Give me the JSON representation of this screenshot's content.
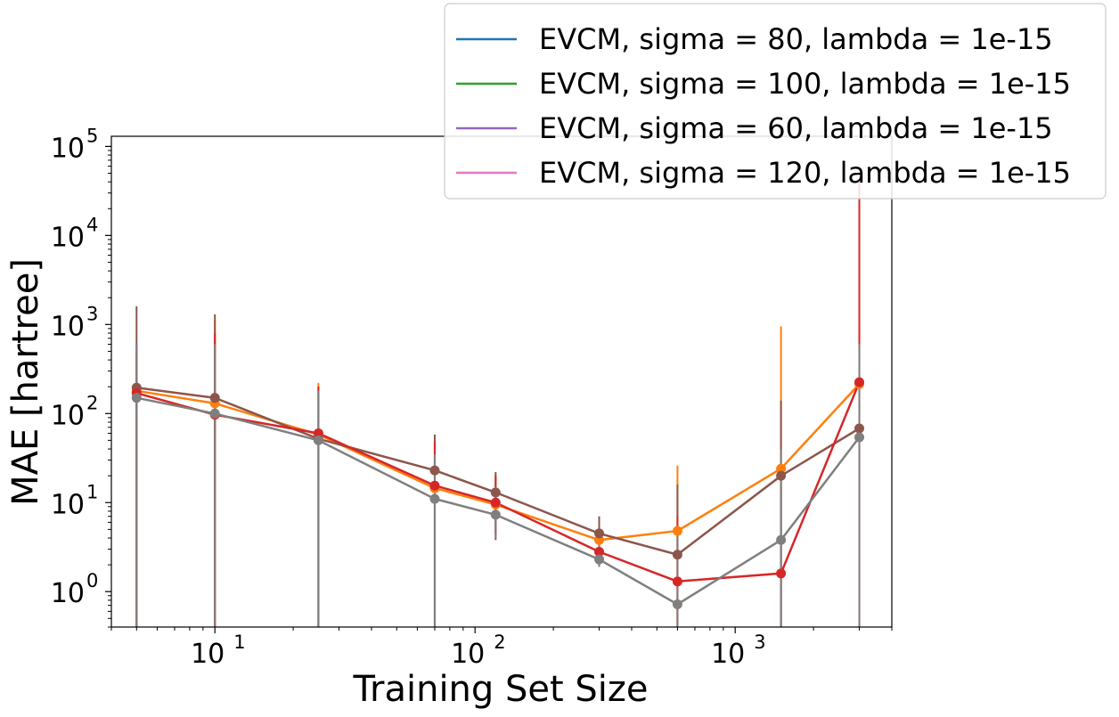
{
  "chart_data": {
    "type": "line",
    "xlabel": "Training Set Size",
    "ylabel": "MAE [hartree]",
    "xscale": "log",
    "yscale": "log",
    "xlim": [
      4,
      4000
    ],
    "ylim": [
      0.4,
      130000
    ],
    "x_ticks": [
      {
        "value": 10,
        "base": "10",
        "exp": "1"
      },
      {
        "value": 100,
        "base": "10",
        "exp": "2"
      },
      {
        "value": 1000,
        "base": "10",
        "exp": "3"
      }
    ],
    "y_ticks": [
      {
        "value": 1,
        "base": "10",
        "exp": "0"
      },
      {
        "value": 10,
        "base": "10",
        "exp": "1"
      },
      {
        "value": 100,
        "base": "10",
        "exp": "2"
      },
      {
        "value": 1000,
        "base": "10",
        "exp": "3"
      },
      {
        "value": 10000,
        "base": "10",
        "exp": "4"
      },
      {
        "value": 100000,
        "base": "10",
        "exp": "5"
      }
    ],
    "legend": {
      "placement": "top-right",
      "entries": [
        {
          "name": "EVCM, sigma = 80, lambda = 1e-15",
          "color": "#1f77b4"
        },
        {
          "name": "EVCM, sigma = 100, lambda = 1e-15",
          "color": "#2ca02c"
        },
        {
          "name": "EVCM, sigma = 60, lambda = 1e-15",
          "color": "#9467bd"
        },
        {
          "name": "EVCM, sigma = 120, lambda = 1e-15",
          "color": "#e377c2"
        }
      ]
    },
    "x": [
      5,
      10,
      25,
      70,
      120,
      300,
      600,
      1500,
      3000
    ],
    "series": [
      {
        "color": "#ff7f0e",
        "values": [
          180,
          130,
          58,
          14.5,
          9.5,
          3.8,
          4.8,
          24,
          215
        ],
        "err_low": [
          0.4,
          0.4,
          0.4,
          0.4,
          4.5,
          2.2,
          0.4,
          0.4,
          0.4
        ],
        "err_high": [
          600,
          1100,
          220,
          50,
          20,
          6,
          26,
          950,
          1000
        ]
      },
      {
        "color": "#8c564b",
        "values": [
          195,
          150,
          52,
          23,
          13,
          4.5,
          2.6,
          20,
          68
        ],
        "err_low": [
          0.4,
          0.4,
          0.4,
          0.4,
          3.8,
          2.4,
          0.4,
          0.4,
          0.4
        ],
        "err_high": [
          1600,
          1300,
          200,
          58,
          22,
          7,
          16,
          140,
          700
        ]
      },
      {
        "color": "#d62728",
        "values": [
          170,
          97,
          60,
          15.5,
          10,
          2.8,
          1.3,
          1.6,
          225
        ],
        "err_low": [
          0.4,
          0.4,
          0.4,
          0.4,
          4.5,
          1.9,
          0.4,
          0.4,
          0.4
        ],
        "err_high": [
          500,
          800,
          200,
          48,
          20,
          4.5,
          7,
          15,
          40000
        ]
      },
      {
        "color": "#7f7f7f",
        "values": [
          150,
          100,
          50,
          11,
          7.3,
          2.3,
          0.72,
          3.8,
          54
        ],
        "err_low": [
          0.4,
          0.4,
          0.4,
          0.4,
          4,
          1.9,
          0.4,
          0.4,
          0.4
        ],
        "err_high": [
          600,
          600,
          180,
          35,
          15,
          3.5,
          5,
          40,
          600
        ]
      }
    ]
  }
}
